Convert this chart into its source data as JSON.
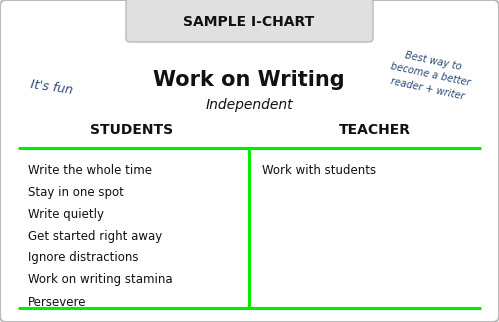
{
  "title_banner": "SAMPLE I-CHART",
  "main_title": "Work on Writing",
  "subtitle": "Independent",
  "left_annotation": "It's fun",
  "right_annotation": "Best way to\nbecome a better\nreader + writer",
  "col1_header": "STUDENTS",
  "col2_header": "TEACHER",
  "col1_items": [
    "Write the whole time",
    "Stay in one spot",
    "Write quietly",
    "Get started right away",
    "Ignore distractions",
    "Work on writing stamina",
    "Persevere"
  ],
  "col2_items": [
    "Work with students"
  ],
  "bg_color": "#ffffff",
  "banner_color": "#e0e0e0",
  "border_color": "#bbbbbb",
  "green_color": "#00ee00",
  "annotation_color": "#2a4a7a",
  "text_color": "#111111"
}
